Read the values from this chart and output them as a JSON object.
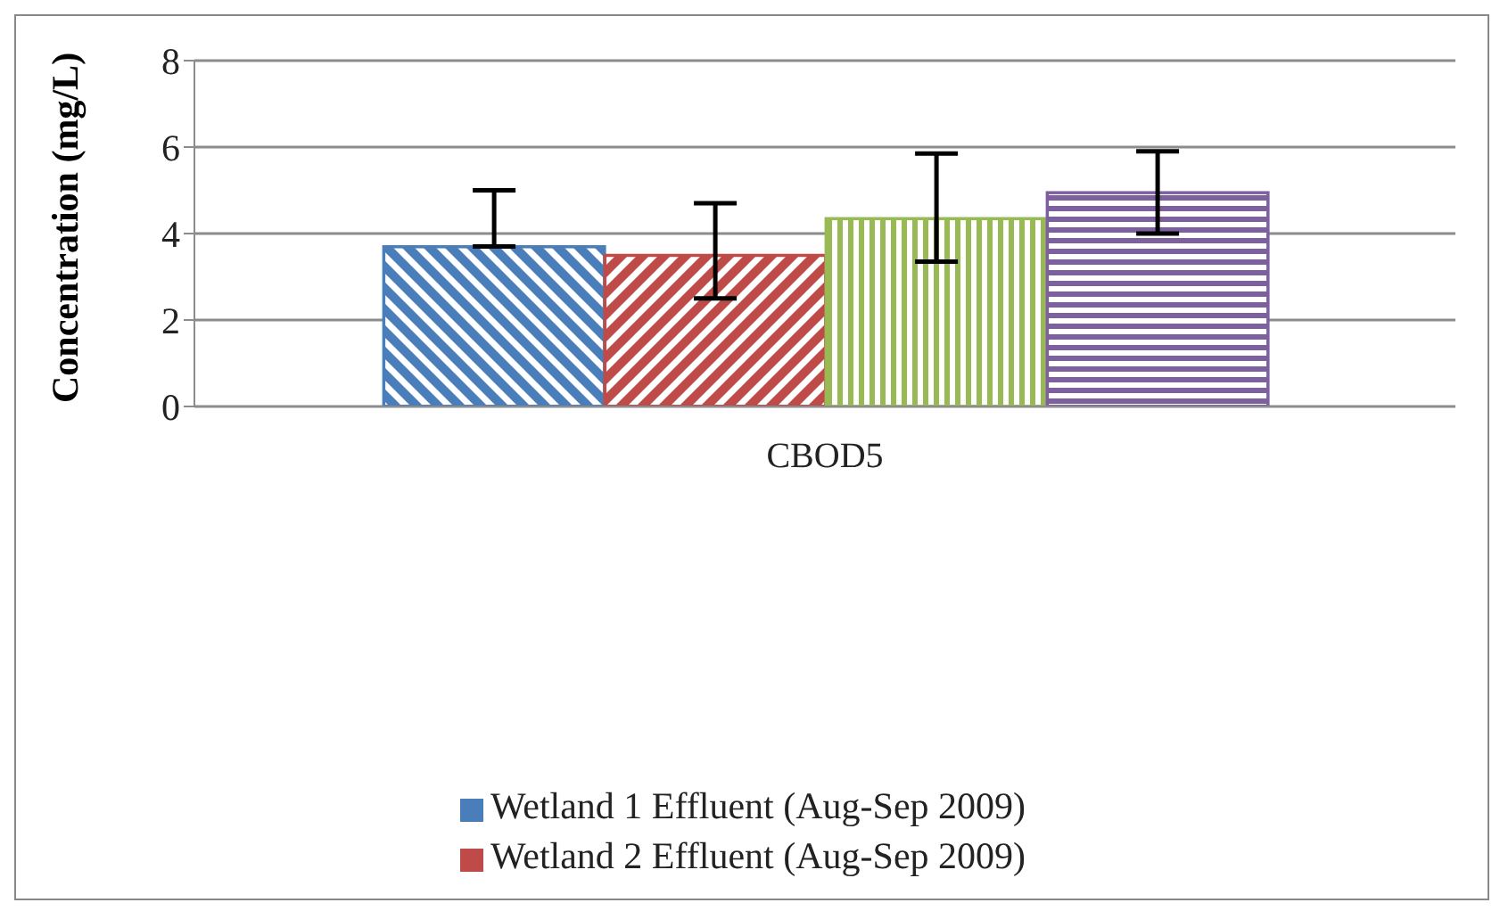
{
  "chart_data": {
    "type": "bar",
    "ylabel": "Concentration (mg/L)",
    "categories": [
      "CBOD5"
    ],
    "series": [
      {
        "name": "Wetland 1 Effluent (Aug-Sep 2009)",
        "color": "#4a7ebb",
        "values": [
          3.7
        ],
        "errors": [
          [
            3.7,
            5.0
          ]
        ]
      },
      {
        "name": "Wetland 2 Effluent (Aug-Sep 2009)",
        "color": "#be4b48",
        "values": [
          3.5
        ],
        "errors": [
          [
            2.5,
            4.7
          ]
        ]
      },
      {
        "color": "#98b954",
        "values": [
          4.35
        ],
        "errors": [
          [
            3.35,
            5.85
          ]
        ]
      },
      {
        "color": "#7d60a0",
        "values": [
          4.95
        ],
        "errors": [
          [
            4.0,
            5.9
          ]
        ]
      }
    ],
    "ylim": [
      0,
      8
    ],
    "yticks": [
      0,
      2,
      4,
      6,
      8
    ],
    "grid": "y",
    "legend": "bottom"
  }
}
